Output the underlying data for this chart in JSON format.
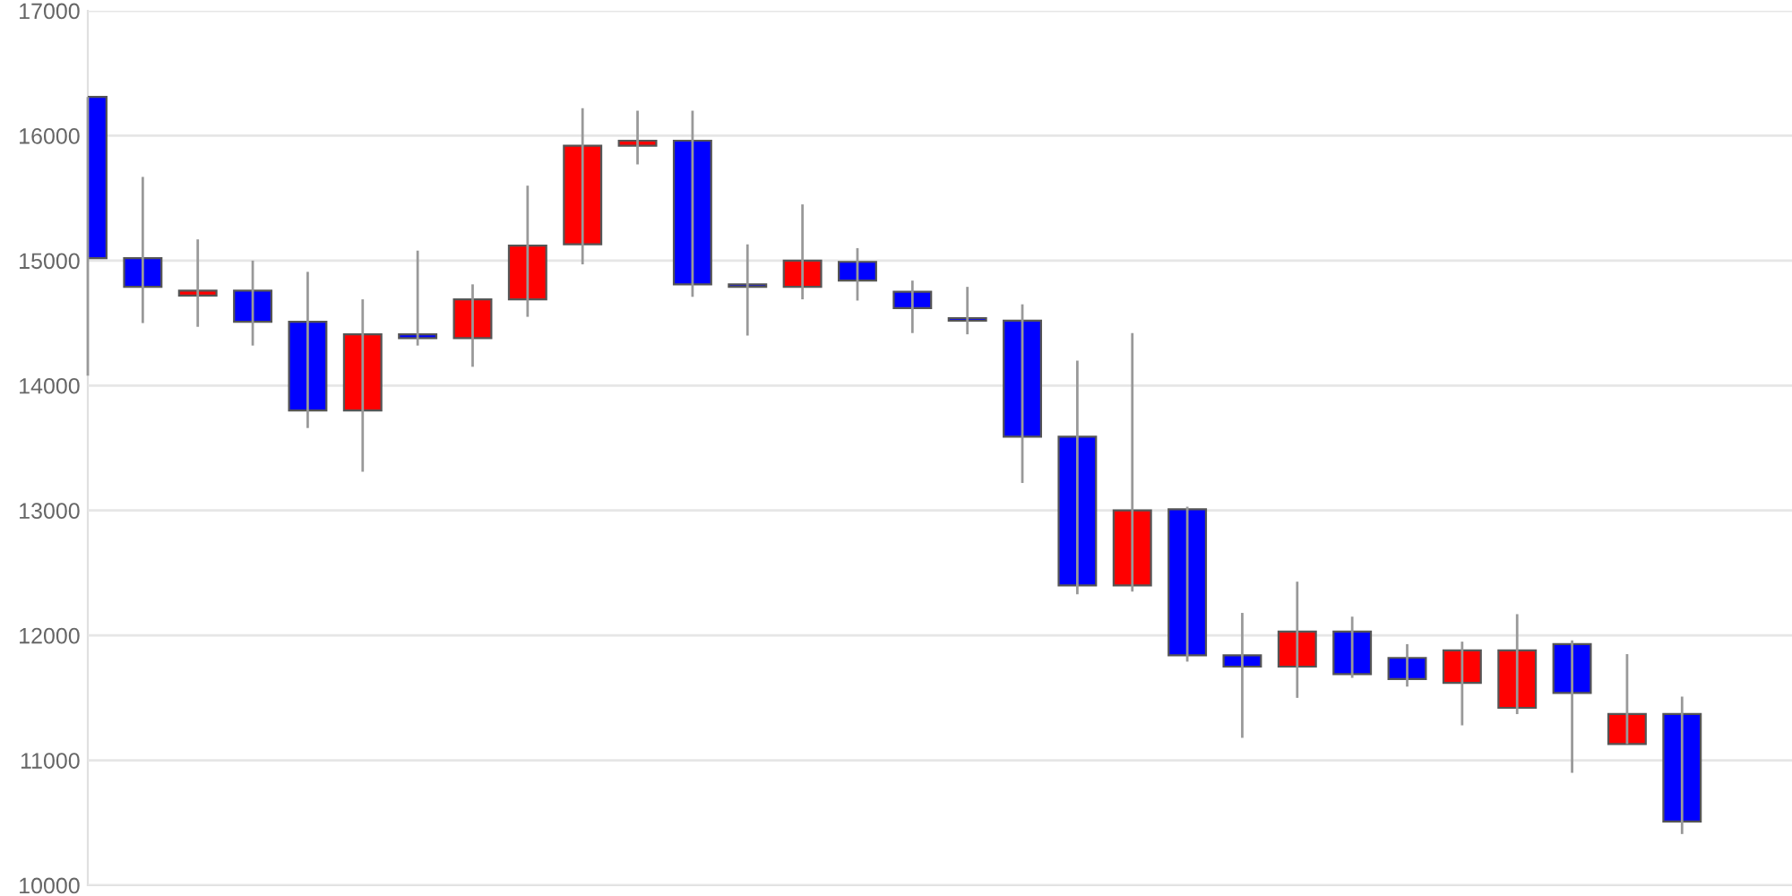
{
  "chart_data": {
    "type": "candlestick",
    "categories": [
      null,
      null,
      null,
      null,
      null,
      null,
      null,
      null,
      null,
      null,
      null,
      null,
      null,
      null,
      null,
      null,
      null,
      null,
      null,
      null,
      null,
      null,
      null,
      null,
      null,
      null,
      null,
      null,
      null,
      null
    ],
    "ohlc": [
      [
        16310,
        16310,
        14080,
        15020
      ],
      [
        15020,
        15670,
        14500,
        14790
      ],
      [
        14720,
        15170,
        14470,
        14760
      ],
      [
        14760,
        15000,
        14320,
        14510
      ],
      [
        14510,
        14910,
        13660,
        13800
      ],
      [
        13800,
        14690,
        13310,
        14410
      ],
      [
        14410,
        15080,
        14320,
        14380
      ],
      [
        14380,
        14810,
        14150,
        14690
      ],
      [
        14690,
        15600,
        14550,
        15120
      ],
      [
        15130,
        16220,
        14970,
        15920
      ],
      [
        15920,
        16200,
        15770,
        15960
      ],
      [
        15960,
        16200,
        14710,
        14810
      ],
      [
        14810,
        15130,
        14400,
        14790
      ],
      [
        14790,
        15450,
        14690,
        15000
      ],
      [
        14990,
        15100,
        14680,
        14840
      ],
      [
        14750,
        14840,
        14420,
        14620
      ],
      [
        14540,
        14790,
        14410,
        14520
      ],
      [
        14520,
        14650,
        13220,
        13590
      ],
      [
        13590,
        14200,
        12330,
        12400
      ],
      [
        12400,
        14420,
        12350,
        13000
      ],
      [
        13010,
        13030,
        11790,
        11840
      ],
      [
        11840,
        12180,
        11180,
        11750
      ],
      [
        11750,
        12430,
        11500,
        12030
      ],
      [
        12030,
        12150,
        11660,
        11690
      ],
      [
        11820,
        11930,
        11590,
        11650
      ],
      [
        11620,
        11950,
        11280,
        11880
      ],
      [
        11420,
        12170,
        11370,
        11880
      ],
      [
        11930,
        11960,
        10900,
        11540
      ],
      [
        11130,
        11850,
        11130,
        11370
      ],
      [
        11370,
        11510,
        10410,
        10510
      ]
    ],
    "colors": [
      "#0000ff",
      "#0000ff",
      "#ff0000",
      "#0000ff",
      "#0000ff",
      "#ff0000",
      "#0000ff",
      "#ff0000",
      "#ff0000",
      "#ff0000",
      "#ff0000",
      "#0000ff",
      "#0000ff",
      "#ff0000",
      "#0000ff",
      "#0000ff",
      "#0000ff",
      "#0000ff",
      "#0000ff",
      "#ff0000",
      "#0000ff",
      "#0000ff",
      "#ff0000",
      "#0000ff",
      "#0000ff",
      "#ff0000",
      "#ff0000",
      "#0000ff",
      "#ff0000",
      "#0000ff"
    ],
    "ylim": [
      10000,
      17000
    ],
    "yticks": [
      10000,
      11000,
      12000,
      13000,
      14000,
      15000,
      16000,
      17000
    ],
    "grid": "y",
    "tick_labels": "y"
  }
}
